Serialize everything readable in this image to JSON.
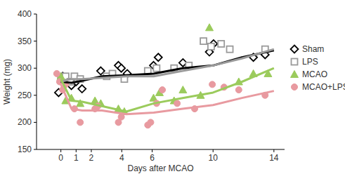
{
  "chart_data": {
    "type": "line",
    "x_label": "Days after MCAO",
    "y_label": "Weight (mg)",
    "xlim": [
      -1.6,
      14.7
    ],
    "ylim": [
      150,
      400
    ],
    "xticks": [
      0,
      1,
      2,
      4,
      6,
      10,
      14
    ],
    "yticks": [
      150,
      200,
      250,
      300,
      350,
      400
    ],
    "grid": false,
    "legend": "right",
    "series": [
      {
        "name": "Sham",
        "color": "#000000",
        "marker": "diamond",
        "x": [
          0,
          0.7,
          1.4,
          2.7,
          4.3,
          6.1,
          8,
          10,
          11.9,
          14
        ],
        "values": [
          275,
          273,
          277,
          285,
          287,
          290,
          300,
          305,
          320,
          333
        ],
        "points_x": [
          -0.15,
          0.12,
          0.69,
          1.0,
          1.39,
          2.62,
          3.78,
          3.97,
          4.36,
          6.09,
          6.4,
          8.02,
          9.76,
          10.03,
          12.65,
          13.42
        ],
        "points_values": [
          255,
          285,
          268,
          275,
          262,
          295,
          305,
          300,
          290,
          305,
          320,
          310,
          330,
          345,
          320,
          325
        ]
      },
      {
        "name": "LPS",
        "color": "#9a9a9a",
        "marker": "square",
        "x": [
          0,
          0.7,
          1.4,
          2.7,
          4.3,
          6.1,
          8,
          10,
          11.9,
          14
        ],
        "values": [
          275,
          280,
          280,
          282,
          285,
          285,
          295,
          305,
          318,
          335
        ],
        "points_x": [
          0,
          0.31,
          0.62,
          0.89,
          1.27,
          3.01,
          3.39,
          4.17,
          5.71,
          6.29,
          7.44,
          8.41,
          9.37,
          9.87,
          10.53,
          11.1,
          13.42
        ],
        "points_values": [
          280,
          285,
          275,
          285,
          280,
          285,
          290,
          280,
          295,
          300,
          300,
          305,
          350,
          340,
          345,
          335,
          335
        ]
      },
      {
        "name": "MCAO",
        "color": "#9bcb5c",
        "marker": "triangle",
        "x": [
          0,
          0.7,
          1.4,
          2.7,
          4.3,
          6.1,
          8,
          10,
          11.9,
          14
        ],
        "values": [
          280,
          240,
          238,
          230,
          220,
          235,
          245,
          255,
          275,
          300
        ],
        "points_x": [
          0,
          0.31,
          0.69,
          1.27,
          2.24,
          2.62,
          3.78,
          4.17,
          6.09,
          6.48,
          7.44,
          8.02,
          9.18,
          9.76,
          11.69,
          12.65,
          13.61
        ],
        "points_values": [
          285,
          240,
          245,
          235,
          240,
          235,
          225,
          220,
          245,
          255,
          240,
          260,
          250,
          375,
          275,
          290,
          290
        ]
      },
      {
        "name": "MCAO+LPS",
        "color": "#e89aa0",
        "marker": "circle",
        "x": [
          0,
          0.7,
          1.4,
          2.7,
          4.3,
          6.1,
          8,
          10,
          11.9,
          14
        ],
        "values": [
          270,
          225,
          222,
          222,
          215,
          218,
          225,
          232,
          245,
          258
        ],
        "points_x": [
          -0.27,
          -0.08,
          0.12,
          0.31,
          0.89,
          1.27,
          2.24,
          2.43,
          3.78,
          3.97,
          5.71,
          5.9,
          6.29,
          6.67,
          7.64,
          8.79,
          9.95,
          10.72,
          11.69,
          13.42
        ],
        "points_values": [
          290,
          275,
          260,
          270,
          225,
          200,
          225,
          230,
          200,
          210,
          195,
          200,
          235,
          260,
          235,
          225,
          270,
          265,
          260,
          250
        ]
      }
    ]
  }
}
